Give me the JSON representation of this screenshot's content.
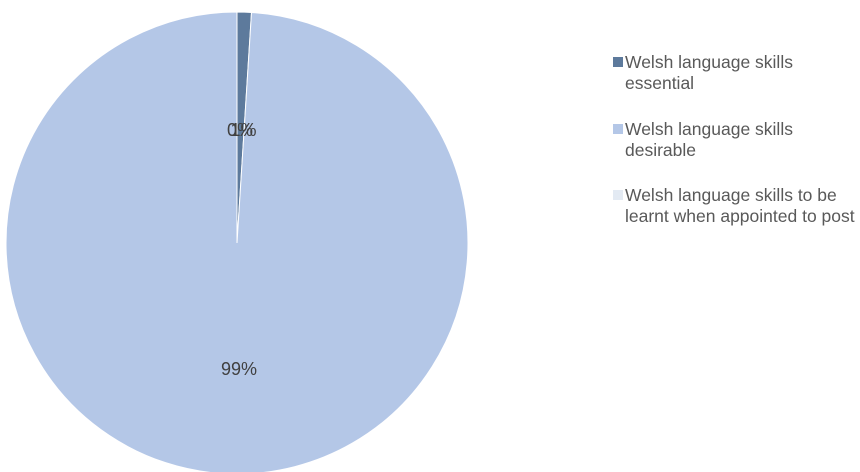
{
  "chart_data": {
    "type": "pie",
    "categories": [
      "Welsh language skills essential",
      "Welsh language skills desirable",
      "Welsh language skills to be learnt when appointed to post"
    ],
    "values": [
      1,
      99,
      0
    ],
    "data_labels": [
      "1%",
      "99%",
      "0%"
    ],
    "colors": [
      "#5d7a9c",
      "#b4c7e7",
      "#e3eaf3"
    ],
    "legend_position": "right"
  }
}
